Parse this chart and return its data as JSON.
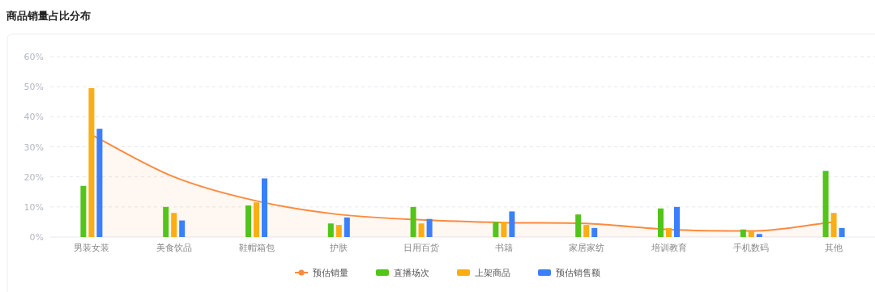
{
  "chart_data": {
    "type": "bar",
    "title": "商品销量占比分布",
    "categories": [
      "男装女装",
      "美食饮品",
      "鞋帽箱包",
      "护肤",
      "日用百货",
      "书籍",
      "家居家纺",
      "培训教育",
      "手机数码",
      "其他"
    ],
    "series": [
      {
        "name": "预估销量",
        "type": "area",
        "color": "#ff8a3d",
        "values": [
          34,
          20,
          12,
          7.5,
          5.7,
          4.8,
          4.5,
          2.5,
          2,
          5
        ]
      },
      {
        "name": "直播场次",
        "color": "#52c41a",
        "values": [
          17,
          10,
          10.5,
          4.5,
          10,
          5,
          7.5,
          9.5,
          2.5,
          22
        ]
      },
      {
        "name": "上架商品",
        "color": "#faad14",
        "values": [
          49.5,
          8,
          11.5,
          4,
          4.5,
          5,
          4,
          3,
          2,
          8
        ]
      },
      {
        "name": "预估销售额",
        "color": "#3a7ffb",
        "values": [
          36,
          5.5,
          19.5,
          6.5,
          6,
          8.5,
          3,
          10,
          1,
          3
        ]
      }
    ],
    "ylim": [
      0,
      60
    ],
    "yticks": [
      {
        "value": 0,
        "label": "0%"
      },
      {
        "value": 10,
        "label": "10%"
      },
      {
        "value": 20,
        "label": "20%"
      },
      {
        "value": 30,
        "label": "30%"
      },
      {
        "value": 40,
        "label": "40%"
      },
      {
        "value": 50,
        "label": "50%"
      },
      {
        "value": 60,
        "label": "60%"
      }
    ],
    "grid": "y",
    "legend": "bottom"
  }
}
